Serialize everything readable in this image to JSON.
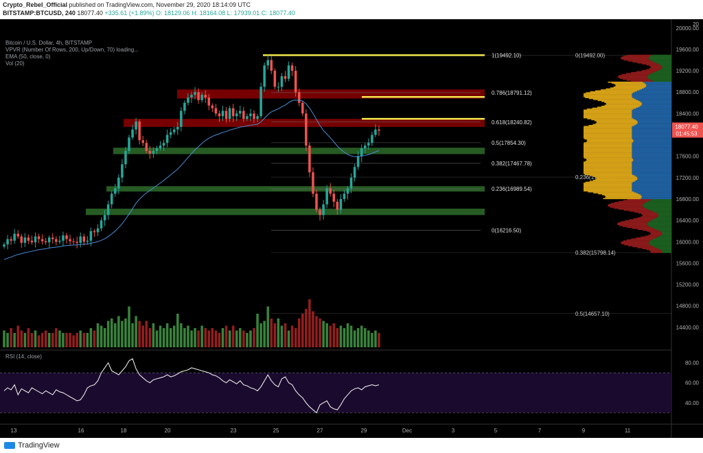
{
  "header": {
    "author": "Crypto_Rebel_Official",
    "published": "published on TradingView.com, November 29, 2020 18:14:09 UTC",
    "symbol": "BITSTAMP:BTCUSD, 240",
    "last": "18077.40",
    "change": "+335.61 (+1.89%)",
    "o": "O: 18129.06",
    "h": "H: 18164.08",
    "l": "L: 17939.01",
    "c": "C: 18077.40"
  },
  "legend": [
    "Bitcoin / U.S. Dollar, 4h, BITSTAMP",
    "VPVR (Number Of Rows, 200, Up/Down, 70) loading...",
    "EMA (50, close, 0)",
    "Vol (20)"
  ],
  "rsi_label": "RSI (14, close)",
  "price_axis": [
    "20000.00",
    "19600.00",
    "19200.00",
    "18800.00",
    "18400.00",
    "18000.00",
    "17600.00",
    "17200.00",
    "16800.00",
    "16400.00",
    "16000.00",
    "15600.00",
    "15200.00",
    "14800.00",
    "14400.00"
  ],
  "price_axis_top": "20",
  "rsi_axis": [
    "80.00",
    "60.00",
    "40.00"
  ],
  "date_axis": [
    "13",
    "16",
    "18",
    "20",
    "23",
    "25",
    "27",
    "29",
    "Dec",
    "3",
    "5",
    "7",
    "9",
    "11"
  ],
  "price_tag": {
    "price": "18077.40",
    "countdown": "01:45:53"
  },
  "fib_labels": [
    {
      "text": "1(19492.10)",
      "value": 19492.1
    },
    {
      "text": "0.786(18791.12)",
      "value": 18791.12
    },
    {
      "text": "0.618(18240.82)",
      "value": 18240.82
    },
    {
      "text": "0.5(17854.30)",
      "value": 17854.3
    },
    {
      "text": "0.382(17467.78)",
      "value": 17467.78
    },
    {
      "text": "0.236(16989.54)",
      "value": 16989.54
    },
    {
      "text": "0(16216.50)",
      "value": 16216.5
    }
  ],
  "fib_labels_right": [
    {
      "text": "0(19492.00)",
      "value": 19492.0
    },
    {
      "text": "0.236(17209.93)",
      "value": 17209.93
    },
    {
      "text": "0.382(15798.14)",
      "value": 15798.14
    },
    {
      "text": "0.5(14657.10)",
      "value": 14657.1
    }
  ],
  "zones": [
    {
      "type": "resistance",
      "low": 18680,
      "high": 18850
    },
    {
      "type": "resistance",
      "low": 18150,
      "high": 18300
    },
    {
      "type": "support",
      "low": 17640,
      "high": 17760
    },
    {
      "type": "support",
      "low": 16940,
      "high": 17040
    },
    {
      "type": "support",
      "low": 16500,
      "high": 16620
    }
  ],
  "yellow_lines": [
    19492.1,
    18710,
    18300
  ],
  "colors": {
    "up": "#26a69a",
    "down": "#ef5350",
    "resistance": "#8b0000",
    "support": "#2e6b2a",
    "yellow": "#f5e94b",
    "ema": "#4a90d9",
    "rsi_bg": "#1a0b2e",
    "price_tag": "#ef5350"
  },
  "footer": {
    "brand": "TradingView"
  },
  "chart_data": {
    "type": "candlestick",
    "title": "Bitcoin / U.S. Dollar, 4h, BITSTAMP",
    "ylim": [
      14000,
      20100
    ],
    "closes": [
      15950,
      16050,
      16020,
      16150,
      16100,
      15980,
      16080,
      16020,
      15990,
      16100,
      16050,
      16010,
      15990,
      16080,
      16050,
      16000,
      16020,
      16120,
      16050,
      16010,
      16000,
      15980,
      16100,
      16000,
      16020,
      16200,
      16180,
      16250,
      16400,
      16500,
      16700,
      16900,
      17000,
      17200,
      17450,
      17700,
      17950,
      18100,
      18250,
      17900,
      17850,
      17700,
      17650,
      17700,
      17750,
      17800,
      17850,
      18000,
      18050,
      18100,
      18150,
      18450,
      18600,
      18700,
      18750,
      18800,
      18650,
      18750,
      18700,
      18550,
      18500,
      18400,
      18350,
      18450,
      18300,
      18500,
      18350,
      18400,
      18450,
      18300,
      18350,
      18400,
      18300,
      18350,
      18900,
      19300,
      19400,
      19200,
      18900,
      18900,
      19100,
      19050,
      19300,
      19200,
      18800,
      18600,
      18400,
      17800,
      17300,
      16900,
      16600,
      16500,
      16700,
      17000,
      16900,
      16750,
      16600,
      16800,
      16900,
      17000,
      17200,
      17400,
      17600,
      17750,
      17800,
      17850,
      18000,
      18100,
      18077
    ],
    "ema_start": 15650,
    "volumes": [
      0.35,
      0.3,
      0.4,
      0.3,
      0.45,
      0.35,
      0.3,
      0.4,
      0.3,
      0.35,
      0.25,
      0.3,
      0.35,
      0.3,
      0.3,
      0.4,
      0.35,
      0.3,
      0.3,
      0.3,
      0.25,
      0.3,
      0.35,
      0.3,
      0.3,
      0.4,
      0.35,
      0.5,
      0.45,
      0.4,
      0.55,
      0.6,
      0.5,
      0.65,
      0.55,
      0.6,
      0.85,
      0.5,
      0.65,
      0.55,
      0.45,
      0.55,
      0.4,
      0.5,
      0.35,
      0.45,
      0.4,
      0.5,
      0.4,
      0.45,
      0.7,
      0.5,
      0.4,
      0.45,
      0.35,
      0.4,
      0.35,
      0.45,
      0.4,
      0.35,
      0.4,
      0.35,
      0.3,
      0.4,
      0.45,
      0.35,
      0.45,
      0.35,
      0.4,
      0.35,
      0.3,
      0.35,
      0.4,
      0.7,
      0.5,
      0.55,
      0.85,
      0.6,
      0.5,
      0.6,
      0.45,
      0.5,
      0.35,
      0.45,
      0.4,
      0.6,
      0.7,
      0.8,
      1.0,
      0.75,
      0.65,
      0.6,
      0.55,
      0.5,
      0.45,
      0.5,
      0.4,
      0.45,
      0.4,
      0.5,
      0.45,
      0.35,
      0.4,
      0.45,
      0.4,
      0.35,
      0.3,
      0.35,
      0.3
    ],
    "rsi": [
      52,
      55,
      53,
      58,
      48,
      54,
      52,
      50,
      55,
      53,
      51,
      49,
      52,
      50,
      48,
      53,
      51,
      50,
      48,
      46,
      44,
      42,
      43,
      48,
      55,
      57,
      58,
      62,
      70,
      75,
      80,
      72,
      70,
      68,
      72,
      76,
      82,
      84,
      74,
      68,
      65,
      62,
      60,
      63,
      64,
      65,
      66,
      68,
      66,
      67,
      69,
      71,
      72,
      73,
      75,
      74,
      73,
      72,
      71,
      70,
      68,
      67,
      65,
      62,
      60,
      63,
      61,
      59,
      62,
      58,
      57,
      55,
      54,
      52,
      56,
      62,
      68,
      62,
      58,
      56,
      64,
      66,
      60,
      58,
      52,
      48,
      45,
      40,
      36,
      33,
      30,
      38,
      40,
      42,
      36,
      34,
      33,
      38,
      44,
      48,
      52,
      54,
      55,
      53,
      56,
      57,
      58,
      57,
      58
    ]
  }
}
